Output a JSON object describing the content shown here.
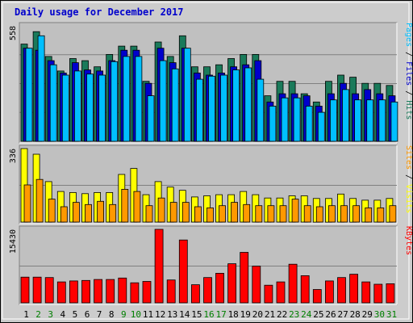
{
  "title": "Daily usage for December 2017",
  "colors": {
    "hits": "#1a7a5a",
    "files": "#0000cc",
    "pages": "#00bfff",
    "visits": "#ffff00",
    "sites": "#ff9900",
    "kbytes": "#ff0000",
    "title": "#0000cc",
    "weekend_label": "#008000",
    "weekday_label": "#000000",
    "background": "#cccccc",
    "plot_bg": "#c0c0c0"
  },
  "legend": {
    "pages": "Pages",
    "files": "Files",
    "hits": "Hits",
    "sites": "Sites",
    "visits": "Visits",
    "kbytes": "KBytes",
    "sep": " / "
  },
  "chart_data": [
    {
      "type": "bar",
      "title": "Daily usage for December 2017",
      "panel": "hits",
      "ymax_label": "558",
      "ylim": [
        0,
        558
      ],
      "categories": [
        "1",
        "2",
        "3",
        "4",
        "5",
        "6",
        "7",
        "8",
        "9",
        "10",
        "11",
        "12",
        "13",
        "14",
        "15",
        "16",
        "17",
        "18",
        "19",
        "20",
        "21",
        "22",
        "23",
        "24",
        "25",
        "26",
        "27",
        "28",
        "29",
        "30",
        "31"
      ],
      "weekend_days": [
        "2",
        "3",
        "9",
        "10",
        "16",
        "17",
        "23",
        "24",
        "30",
        "31"
      ],
      "series": [
        {
          "name": "Hits",
          "values": [
            470,
            530,
            410,
            340,
            400,
            390,
            360,
            420,
            460,
            460,
            290,
            480,
            410,
            510,
            360,
            360,
            370,
            400,
            420,
            420,
            220,
            290,
            290,
            230,
            190,
            290,
            320,
            310,
            280,
            280,
            270
          ]
        },
        {
          "name": "Files",
          "values": [
            450,
            440,
            390,
            330,
            380,
            345,
            340,
            390,
            440,
            440,
            280,
            450,
            380,
            450,
            330,
            320,
            330,
            360,
            370,
            390,
            190,
            230,
            230,
            220,
            170,
            230,
            280,
            230,
            250,
            230,
            220
          ]
        },
        {
          "name": "Pages",
          "values": [
            450,
            510,
            370,
            320,
            340,
            325,
            320,
            385,
            410,
            410,
            220,
            390,
            350,
            450,
            300,
            315,
            320,
            345,
            355,
            300,
            170,
            210,
            210,
            170,
            140,
            200,
            250,
            200,
            200,
            200,
            190
          ]
        }
      ]
    },
    {
      "type": "bar",
      "panel": "visits",
      "ymax_label": "336",
      "ylim": [
        0,
        336
      ],
      "categories": [
        "1",
        "2",
        "3",
        "4",
        "5",
        "6",
        "7",
        "8",
        "9",
        "10",
        "11",
        "12",
        "13",
        "14",
        "15",
        "16",
        "17",
        "18",
        "19",
        "20",
        "21",
        "22",
        "23",
        "24",
        "25",
        "26",
        "27",
        "28",
        "29",
        "30",
        "31"
      ],
      "series": [
        {
          "name": "Visits",
          "values": [
            336,
            310,
            185,
            140,
            135,
            130,
            135,
            135,
            218,
            245,
            125,
            185,
            160,
            145,
            115,
            120,
            125,
            125,
            140,
            125,
            110,
            110,
            120,
            120,
            108,
            108,
            128,
            108,
            100,
            100,
            108
          ]
        },
        {
          "name": "Sites",
          "values": [
            170,
            195,
            105,
            70,
            90,
            80,
            95,
            80,
            150,
            140,
            75,
            110,
            90,
            90,
            70,
            65,
            75,
            90,
            80,
            75,
            75,
            75,
            105,
            75,
            70,
            75,
            75,
            75,
            65,
            65,
            75
          ]
        }
      ]
    },
    {
      "type": "bar",
      "panel": "kbytes",
      "ymax_label": "15430",
      "ylim": [
        0,
        15430
      ],
      "categories": [
        "1",
        "2",
        "3",
        "4",
        "5",
        "6",
        "7",
        "8",
        "9",
        "10",
        "11",
        "12",
        "13",
        "14",
        "15",
        "16",
        "17",
        "18",
        "19",
        "20",
        "21",
        "22",
        "23",
        "24",
        "25",
        "26",
        "27",
        "28",
        "29",
        "30",
        "31"
      ],
      "series": [
        {
          "name": "KBytes",
          "values": [
            5400,
            5400,
            5300,
            4400,
            4600,
            4700,
            4900,
            4900,
            5200,
            4200,
            4500,
            15430,
            4800,
            13200,
            3800,
            5300,
            6200,
            8200,
            10600,
            7700,
            3700,
            4400,
            8100,
            5700,
            2800,
            4600,
            5300,
            6000,
            4400,
            3900,
            4000
          ]
        }
      ]
    }
  ]
}
